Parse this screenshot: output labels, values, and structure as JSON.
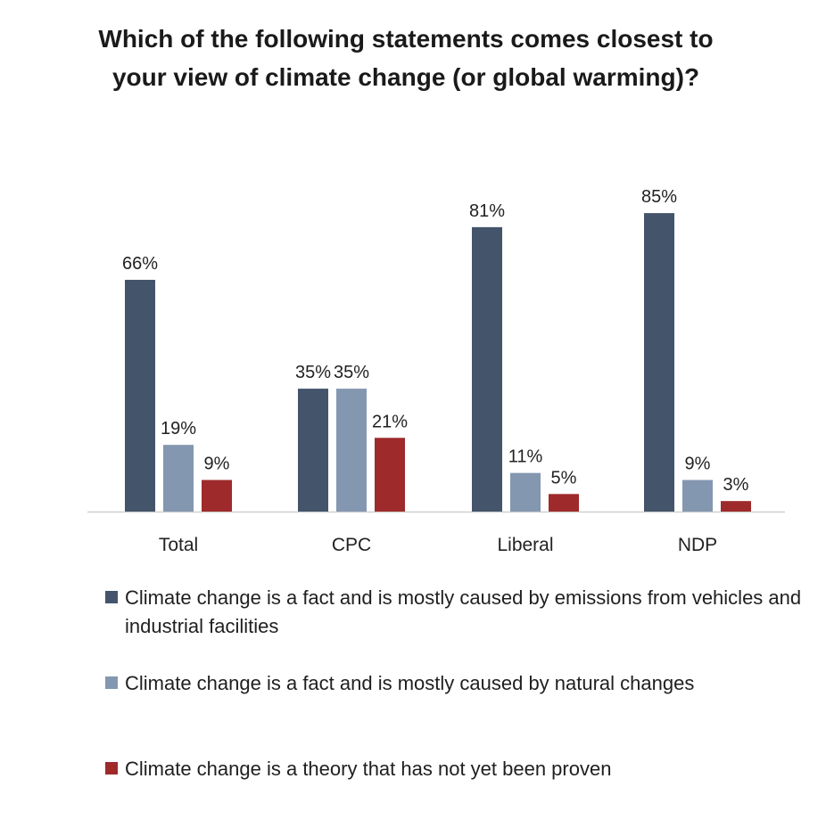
{
  "chart_data": {
    "type": "bar",
    "title": "Which of the following statements comes closest to your view of climate change (or global warming)?",
    "categories": [
      "Total",
      "CPC",
      "Liberal",
      "NDP"
    ],
    "series": [
      {
        "name": "Climate change is a fact and is mostly caused by emissions from vehicles and industrial facilities",
        "color": "#44546a",
        "values": [
          66,
          35,
          81,
          85
        ],
        "labels": [
          "66%",
          "35%",
          "81%",
          "85%"
        ]
      },
      {
        "name": "Climate change is a fact and is mostly caused by natural changes",
        "color": "#8497b0",
        "values": [
          19,
          35,
          11,
          9
        ],
        "labels": [
          "19%",
          "35%",
          "11%",
          "9%"
        ]
      },
      {
        "name": "Climate change is a theory that has not yet been proven",
        "color": "#9e2a2b",
        "values": [
          9,
          21,
          5,
          3
        ],
        "labels": [
          "9%",
          "21%",
          "5%",
          "3%"
        ]
      }
    ],
    "ylim": [
      0,
      100
    ],
    "xlabel": "",
    "ylabel": "",
    "grid": false,
    "legend_position": "bottom",
    "axis_color": "#d0d0d0"
  }
}
